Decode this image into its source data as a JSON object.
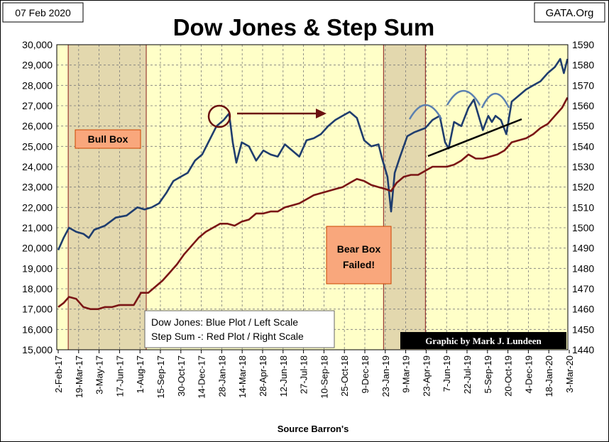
{
  "header": {
    "date": "07 Feb 2020",
    "title": "Dow Jones & Step Sum",
    "source": "GATA.Org"
  },
  "annotations": {
    "bull_box": "Bull Box",
    "bear_box_line1": "Bear Box",
    "bear_box_line2": "Failed!",
    "legend_line1": "Dow Jones: Blue Plot / Left Scale",
    "legend_line2": "Step Sum -: Red Plot / Right Scale",
    "credit": "Graphic by Mark J. Lundeen"
  },
  "colors": {
    "plot_bg": "#ffffc8",
    "box_fill": "#e3d8ae",
    "label_fill": "#f9a77c",
    "dow": "#1f3d6e",
    "step": "#7a1515",
    "arrow": "#6b1010",
    "hump": "#5b80b0"
  },
  "chart_data": {
    "type": "line",
    "title": "Dow Jones & Step Sum",
    "xlabel": "Source Barron's",
    "x_ticks": [
      "2-Feb-17",
      "19-Mar-17",
      "3-May-17",
      "17-Jun-17",
      "1-Aug-17",
      "15-Sep-17",
      "30-Oct-17",
      "14-Dec-17",
      "28-Jan-18",
      "14-Mar-18",
      "28-Apr-18",
      "12-Jun-18",
      "27-Jul-18",
      "10-Sep-18",
      "25-Oct-18",
      "9-Dec-18",
      "23-Jan-19",
      "9-Mar-19",
      "23-Apr-19",
      "7-Jun-19",
      "22-Jul-19",
      "5-Sep-19",
      "20-Oct-19",
      "4-Dec-19",
      "18-Jan-20",
      "3-Mar-20"
    ],
    "y_left": {
      "min": 15000,
      "max": 30000,
      "step": 1000,
      "tick_labels": [
        "15,000",
        "16,000",
        "17,000",
        "18,000",
        "19,000",
        "20,000",
        "21,000",
        "22,000",
        "23,000",
        "24,000",
        "25,000",
        "26,000",
        "27,000",
        "28,000",
        "29,000",
        "30,000"
      ]
    },
    "y_right": {
      "min": 1440,
      "max": 1590,
      "step": 10,
      "tick_labels": [
        "1440",
        "1450",
        "1460",
        "1470",
        "1480",
        "1490",
        "1500",
        "1510",
        "1520",
        "1530",
        "1540",
        "1550",
        "1560",
        "1570",
        "1580",
        "1590"
      ]
    },
    "shaded_periods": [
      {
        "start": 2.8,
        "end": 24.6
      },
      {
        "start": 90.9,
        "end": 102.6
      }
    ],
    "series": [
      {
        "axis": "left",
        "points": [
          [
            0,
            19900
          ],
          [
            1.5,
            20500
          ],
          [
            3,
            21000
          ],
          [
            5,
            20800
          ],
          [
            7,
            20700
          ],
          [
            8.5,
            20500
          ],
          [
            10,
            20900
          ],
          [
            13,
            21100
          ],
          [
            16,
            21500
          ],
          [
            19,
            21600
          ],
          [
            22,
            22000
          ],
          [
            24,
            21900
          ],
          [
            26,
            22000
          ],
          [
            28,
            22200
          ],
          [
            30,
            22700
          ],
          [
            32,
            23300
          ],
          [
            34,
            23500
          ],
          [
            36,
            23700
          ],
          [
            38,
            24300
          ],
          [
            40,
            24600
          ],
          [
            42,
            25300
          ],
          [
            44,
            26000
          ],
          [
            46,
            26300
          ],
          [
            47.5,
            26616
          ],
          [
            48.5,
            25200
          ],
          [
            49.5,
            24200
          ],
          [
            51,
            25200
          ],
          [
            53,
            25000
          ],
          [
            55,
            24300
          ],
          [
            57,
            24800
          ],
          [
            59,
            24600
          ],
          [
            61,
            24500
          ],
          [
            63,
            25100
          ],
          [
            65,
            24800
          ],
          [
            67,
            24500
          ],
          [
            69,
            25300
          ],
          [
            71,
            25400
          ],
          [
            73,
            25600
          ],
          [
            75,
            26000
          ],
          [
            77,
            26300
          ],
          [
            79,
            26500
          ],
          [
            81,
            26700
          ],
          [
            83,
            26400
          ],
          [
            85,
            25300
          ],
          [
            87,
            25000
          ],
          [
            89,
            25100
          ],
          [
            90,
            24400
          ],
          [
            91.5,
            23500
          ],
          [
            92.5,
            21800
          ],
          [
            93.5,
            23700
          ],
          [
            95,
            24500
          ],
          [
            97,
            25500
          ],
          [
            99,
            25700
          ],
          [
            100.5,
            25800
          ],
          [
            102,
            25900
          ],
          [
            104,
            26300
          ],
          [
            106,
            26500
          ],
          [
            107.5,
            25200
          ],
          [
            108.5,
            24900
          ],
          [
            110,
            26200
          ],
          [
            112,
            26000
          ],
          [
            114,
            26900
          ],
          [
            115.5,
            27300
          ],
          [
            117,
            26400
          ],
          [
            118,
            25800
          ],
          [
            119.5,
            26500
          ],
          [
            120.5,
            26200
          ],
          [
            121.5,
            26500
          ],
          [
            123,
            26300
          ],
          [
            124.5,
            25600
          ],
          [
            126,
            27200
          ],
          [
            128,
            27500
          ],
          [
            130,
            27800
          ],
          [
            132,
            28000
          ],
          [
            134,
            28200
          ],
          [
            136,
            28600
          ],
          [
            138,
            28900
          ],
          [
            139.5,
            29300
          ],
          [
            140.5,
            28600
          ],
          [
            141.5,
            29300
          ]
        ]
      },
      {
        "axis": "right",
        "points": [
          [
            0,
            1461
          ],
          [
            1.5,
            1463
          ],
          [
            3,
            1466
          ],
          [
            5,
            1465
          ],
          [
            7,
            1461
          ],
          [
            9,
            1460
          ],
          [
            11,
            1460
          ],
          [
            13,
            1461
          ],
          [
            15,
            1461
          ],
          [
            17,
            1462
          ],
          [
            19,
            1462
          ],
          [
            21,
            1462
          ],
          [
            23,
            1468
          ],
          [
            25,
            1468
          ],
          [
            27,
            1471
          ],
          [
            29,
            1474
          ],
          [
            31,
            1478
          ],
          [
            33,
            1482
          ],
          [
            35,
            1487
          ],
          [
            37,
            1491
          ],
          [
            39,
            1495
          ],
          [
            41,
            1498
          ],
          [
            43,
            1500
          ],
          [
            45,
            1502
          ],
          [
            47,
            1502
          ],
          [
            49,
            1501
          ],
          [
            51,
            1503
          ],
          [
            53,
            1504
          ],
          [
            55,
            1507
          ],
          [
            57,
            1507
          ],
          [
            59,
            1508
          ],
          [
            61,
            1508
          ],
          [
            63,
            1510
          ],
          [
            65,
            1511
          ],
          [
            67,
            1512
          ],
          [
            69,
            1514
          ],
          [
            71,
            1516
          ],
          [
            73,
            1517
          ],
          [
            75,
            1518
          ],
          [
            77,
            1519
          ],
          [
            79,
            1520
          ],
          [
            81,
            1522
          ],
          [
            83,
            1524
          ],
          [
            85,
            1523
          ],
          [
            87,
            1521
          ],
          [
            89,
            1520
          ],
          [
            91,
            1519
          ],
          [
            92.5,
            1518
          ],
          [
            94,
            1522
          ],
          [
            96,
            1525
          ],
          [
            98,
            1526
          ],
          [
            100,
            1526
          ],
          [
            102,
            1528
          ],
          [
            104,
            1530
          ],
          [
            106,
            1530
          ],
          [
            108,
            1530
          ],
          [
            110,
            1531
          ],
          [
            112,
            1533
          ],
          [
            114,
            1536
          ],
          [
            116,
            1534
          ],
          [
            118,
            1534
          ],
          [
            120,
            1535
          ],
          [
            122,
            1536
          ],
          [
            124,
            1538
          ],
          [
            126,
            1542
          ],
          [
            128,
            1543
          ],
          [
            130,
            1544
          ],
          [
            132,
            1546
          ],
          [
            134,
            1549
          ],
          [
            136,
            1551
          ],
          [
            138,
            1555
          ],
          [
            140,
            1559
          ],
          [
            141.5,
            1564
          ]
        ]
      }
    ]
  }
}
